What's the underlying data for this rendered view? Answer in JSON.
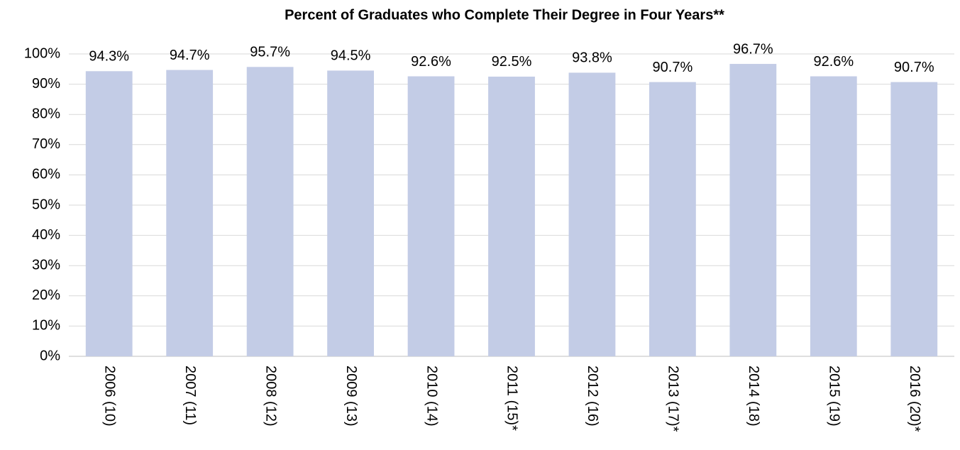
{
  "chart_data": {
    "type": "bar",
    "title": "Percent of Graduates who Complete Their Degree in Four Years**",
    "categories": [
      "2006 (10)",
      "2007 (11)",
      "2008 (12)",
      "2009 (13)",
      "2010 (14)",
      "2011 (15)*",
      "2012 (16)",
      "2013 (17)*",
      "2014 (18)",
      "2015 (19)",
      "2016 (20)*"
    ],
    "values": [
      94.3,
      94.7,
      95.7,
      94.5,
      92.6,
      92.5,
      93.8,
      90.7,
      96.7,
      92.6,
      90.7
    ],
    "value_labels": [
      "94.3%",
      "94.7%",
      "95.7%",
      "94.5%",
      "92.6%",
      "92.5%",
      "93.8%",
      "90.7%",
      "96.7%",
      "92.6%",
      "90.7%"
    ],
    "color": "#c3cce6",
    "ylim": [
      0,
      100
    ],
    "yticks": [
      {
        "value": 0,
        "label": "0%"
      },
      {
        "value": 10,
        "label": "10%"
      },
      {
        "value": 20,
        "label": "20%"
      },
      {
        "value": 30,
        "label": "30%"
      },
      {
        "value": 40,
        "label": "40%"
      },
      {
        "value": 50,
        "label": "50%"
      },
      {
        "value": 60,
        "label": "60%"
      },
      {
        "value": 70,
        "label": "70%"
      },
      {
        "value": 80,
        "label": "80%"
      },
      {
        "value": 90,
        "label": "90%"
      },
      {
        "value": 100,
        "label": "100%"
      }
    ],
    "grid": true
  }
}
